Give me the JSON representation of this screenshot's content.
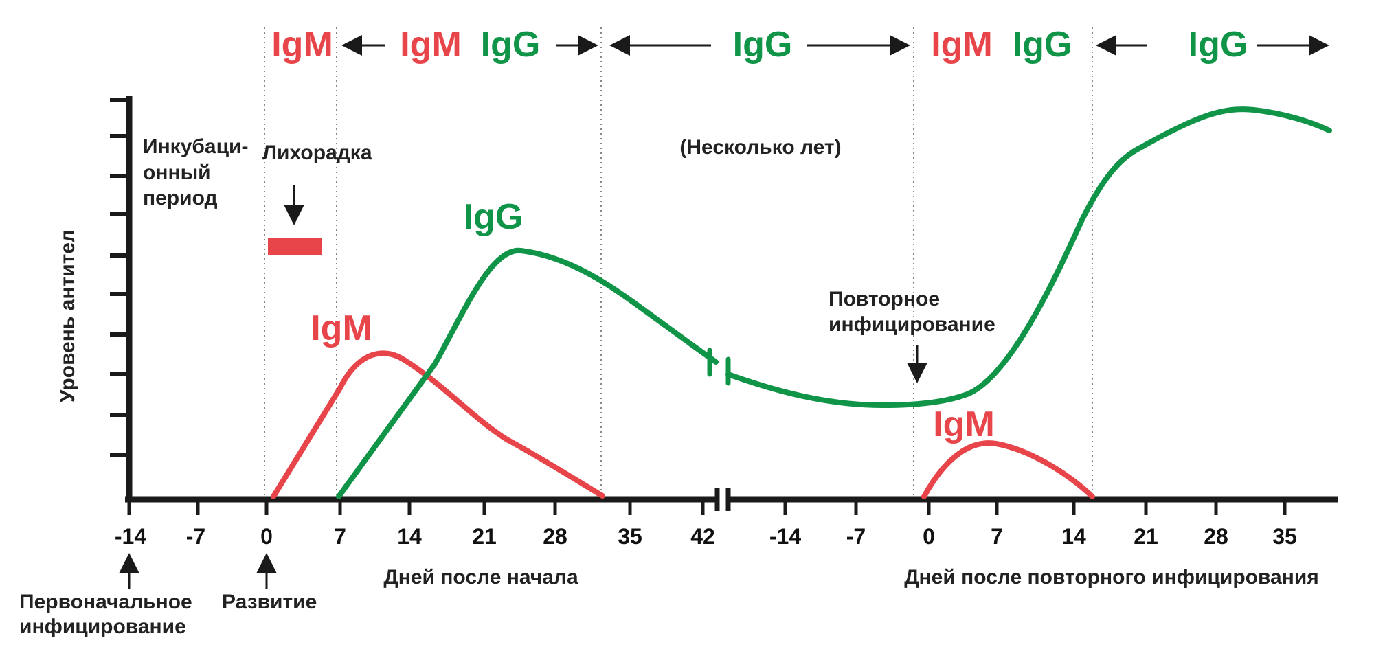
{
  "colors": {
    "igm": "#e8454b",
    "igg": "#0f9448",
    "axis": "#1a1a1a",
    "divider": "#888888",
    "fever_bar": "#e8454b"
  },
  "header": {
    "seg1": {
      "igm": "IgM"
    },
    "seg2": {
      "igm": "IgM",
      "igg": "IgG"
    },
    "seg3": {
      "igg": "IgG"
    },
    "seg4": {
      "igm": "IgM",
      "igg": "IgG"
    },
    "seg5": {
      "igg": "IgG"
    }
  },
  "annotations": {
    "incubation_lines": [
      "Инкубаци-",
      "онный",
      "период"
    ],
    "fever": "Лихорадка",
    "several_years": "(Несколько лет)",
    "reinfection_lines": [
      "Повторное",
      "инфицирование"
    ],
    "initial_infection_lines": [
      "Первоначальное",
      "инфицирование"
    ],
    "onset": "Развитие"
  },
  "axis": {
    "y_label": "Уровень антител",
    "x_label_primary": "Дней после начала",
    "x_label_secondary": "Дней после повторного инфицирования",
    "ticks_primary": [
      "-14",
      "-7",
      "0",
      "7",
      "14",
      "21",
      "28",
      "35",
      "42"
    ],
    "ticks_secondary": [
      "-14",
      "-7",
      "0",
      "7",
      "14",
      "21",
      "28",
      "35"
    ]
  },
  "curves": {
    "igm_primary_label": "IgM",
    "igg_primary_label": "IgG",
    "igm_secondary_label": "IgM"
  }
}
